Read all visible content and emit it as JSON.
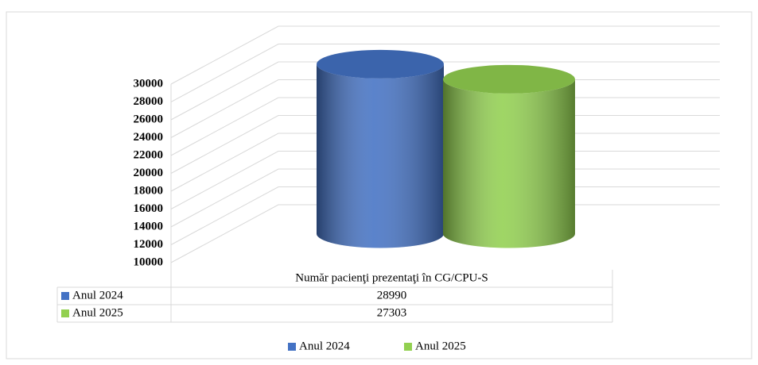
{
  "chart_data": {
    "type": "cylinder",
    "categories": [
      "Număr pacienţi prezentaţi în CG/CPU-S"
    ],
    "series": [
      {
        "name": "Anul 2024",
        "color": "#4472c4",
        "values": [
          28990
        ]
      },
      {
        "name": "Anul 2025",
        "color": "#92d050",
        "values": [
          27303
        ]
      }
    ],
    "ylim": [
      10000,
      30000
    ],
    "yticks": [
      10000,
      12000,
      14000,
      16000,
      18000,
      20000,
      22000,
      24000,
      26000,
      28000,
      30000
    ],
    "grid": true,
    "legend": "bottom",
    "data_table": true
  }
}
